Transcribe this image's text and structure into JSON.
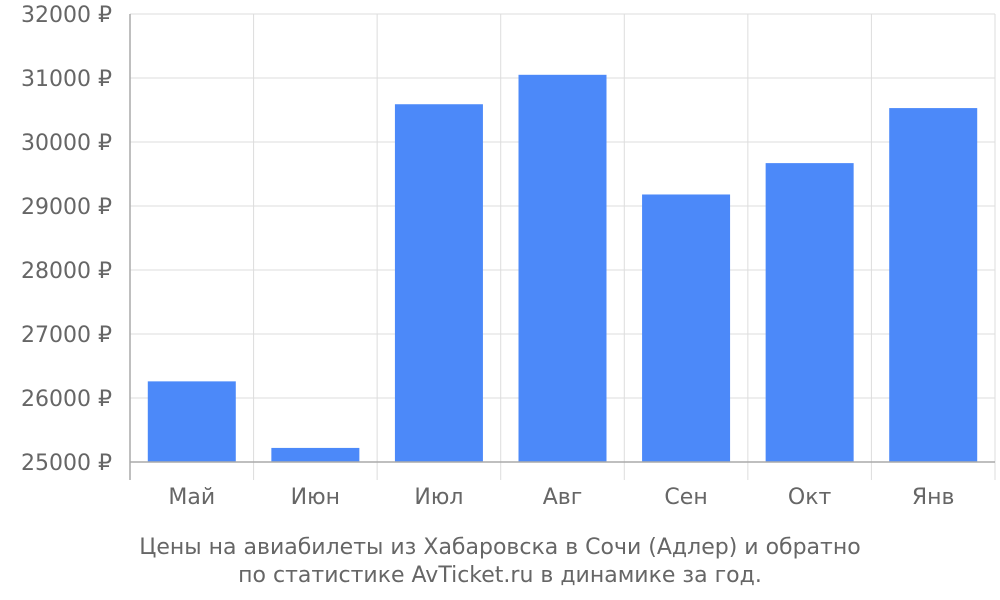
{
  "chart_data": {
    "type": "bar",
    "categories": [
      "Май",
      "Июн",
      "Июл",
      "Авг",
      "Сен",
      "Окт",
      "Янв"
    ],
    "values": [
      26260,
      25220,
      30590,
      31050,
      29180,
      29670,
      30530
    ],
    "ylim": [
      25000,
      32000
    ],
    "yticks": [
      25000,
      26000,
      27000,
      28000,
      29000,
      30000,
      31000,
      32000
    ],
    "ytick_suffix": " ₽",
    "grid": true,
    "bar_color": "#4c89f9",
    "grid_color": "#dddddd",
    "axis_color": "#aaaaaa",
    "text_color": "#666666"
  },
  "caption": {
    "line1": "Цены на авиабилеты из Хабаровска в Сочи (Адлер) и обратно",
    "line2": "по статистике AvTicket.ru в динамике за год."
  }
}
